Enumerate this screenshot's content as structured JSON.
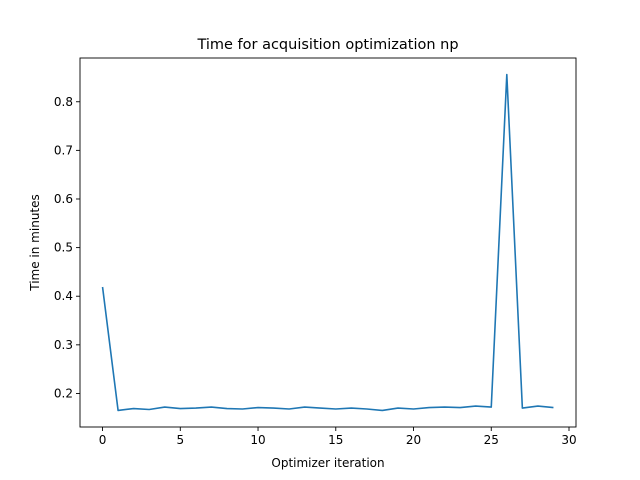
{
  "chart_data": {
    "type": "line",
    "title": "Time for acquisition optimization np",
    "xlabel": "Optimizer iteration",
    "ylabel": "Time in minutes",
    "xlim": [
      -1.45,
      30.45
    ],
    "ylim": [
      0.131,
      0.89
    ],
    "xticks": [
      0,
      5,
      10,
      15,
      20,
      25,
      30
    ],
    "yticks": [
      0.2,
      0.3,
      0.4,
      0.5,
      0.6,
      0.7,
      0.8
    ],
    "xtick_labels": [
      "0",
      "5",
      "10",
      "15",
      "20",
      "25",
      "30"
    ],
    "ytick_labels": [
      "0.2",
      "0.3",
      "0.4",
      "0.5",
      "0.6",
      "0.7",
      "0.8"
    ],
    "grid": false,
    "legend": "none",
    "series": [
      {
        "color": "#1f77b4",
        "x": [
          0,
          1,
          2,
          3,
          4,
          5,
          6,
          7,
          8,
          9,
          10,
          11,
          12,
          13,
          14,
          15,
          16,
          17,
          18,
          19,
          20,
          21,
          22,
          23,
          24,
          25,
          26,
          27,
          28,
          29
        ],
        "y": [
          0.419,
          0.165,
          0.169,
          0.167,
          0.172,
          0.169,
          0.17,
          0.172,
          0.169,
          0.168,
          0.171,
          0.17,
          0.168,
          0.172,
          0.17,
          0.168,
          0.17,
          0.168,
          0.165,
          0.17,
          0.168,
          0.171,
          0.172,
          0.171,
          0.174,
          0.172,
          0.856,
          0.17,
          0.174,
          0.171
        ]
      }
    ]
  }
}
